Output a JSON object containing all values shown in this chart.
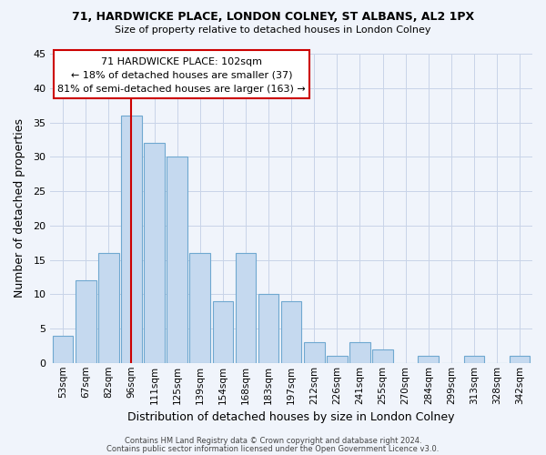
{
  "title_line1": "71, HARDWICKE PLACE, LONDON COLNEY, ST ALBANS, AL2 1PX",
  "title_line2": "Size of property relative to detached houses in London Colney",
  "xlabel": "Distribution of detached houses by size in London Colney",
  "ylabel": "Number of detached properties",
  "bar_labels": [
    "53sqm",
    "67sqm",
    "82sqm",
    "96sqm",
    "111sqm",
    "125sqm",
    "139sqm",
    "154sqm",
    "168sqm",
    "183sqm",
    "197sqm",
    "212sqm",
    "226sqm",
    "241sqm",
    "255sqm",
    "270sqm",
    "284sqm",
    "299sqm",
    "313sqm",
    "328sqm",
    "342sqm"
  ],
  "bar_values": [
    4,
    12,
    16,
    36,
    32,
    30,
    16,
    9,
    16,
    10,
    9,
    3,
    1,
    3,
    2,
    0,
    1,
    0,
    1,
    0,
    1
  ],
  "bar_color": "#c5d9ef",
  "bar_edgecolor": "#6fa8d0",
  "vline_x": 3.0,
  "vline_color": "#cc0000",
  "ylim": [
    0,
    45
  ],
  "yticks": [
    0,
    5,
    10,
    15,
    20,
    25,
    30,
    35,
    40,
    45
  ],
  "annotation_box_text_line1": "71 HARDWICKE PLACE: 102sqm",
  "annotation_box_text_line2": "← 18% of detached houses are smaller (37)",
  "annotation_box_text_line3": "81% of semi-detached houses are larger (163) →",
  "footer_line1": "Contains HM Land Registry data © Crown copyright and database right 2024.",
  "footer_line2": "Contains public sector information licensed under the Open Government Licence v3.0.",
  "bg_color": "#f0f4fb",
  "grid_color": "#c8d4e8"
}
